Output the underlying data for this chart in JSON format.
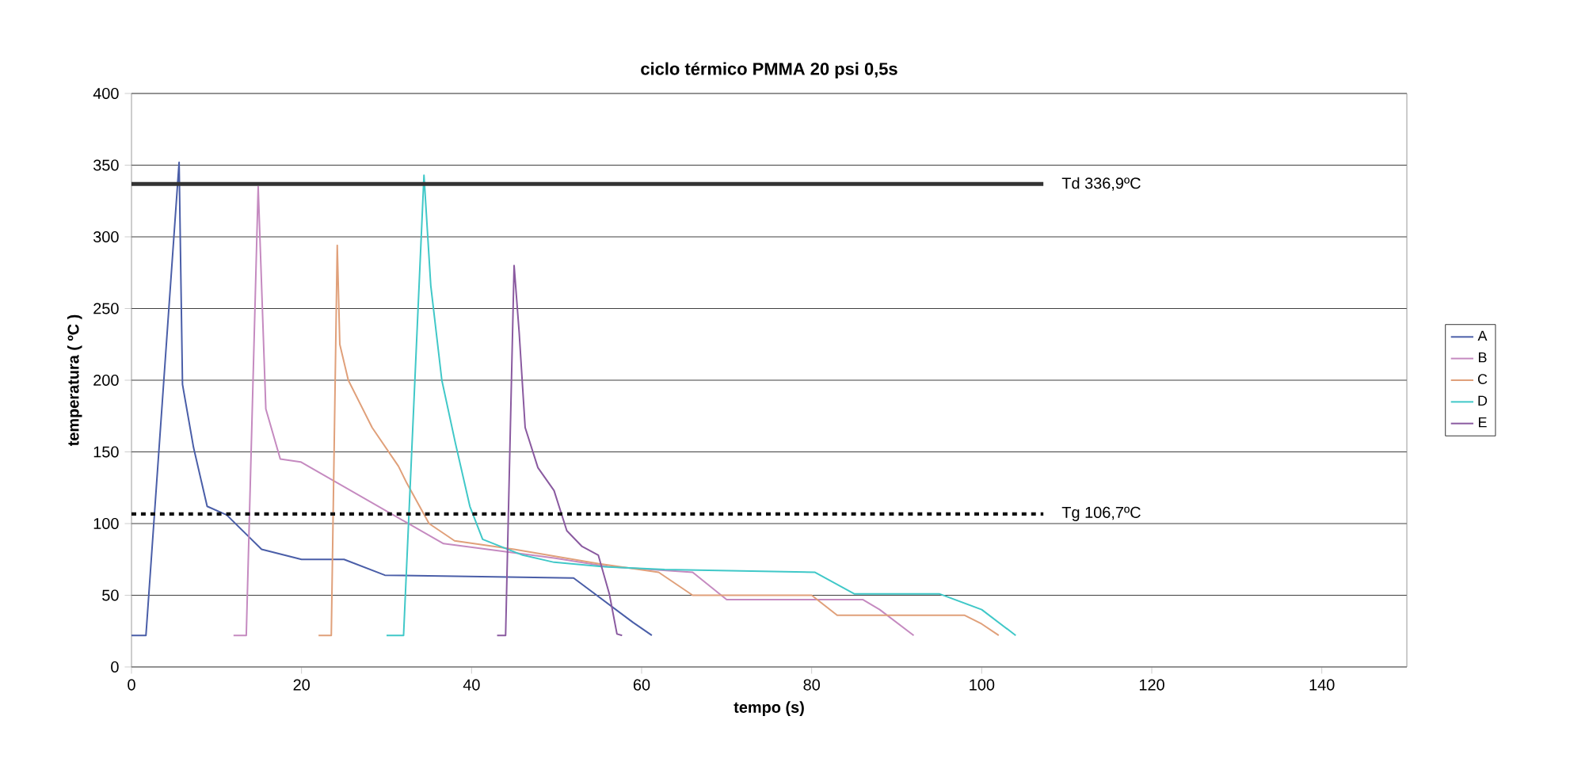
{
  "chart_data": {
    "type": "line",
    "title": "ciclo térmico PMMA 20 psi 0,5s",
    "xlabel": "tempo (s)",
    "ylabel": "temperatura ( ºC )",
    "xlim": [
      0,
      150
    ],
    "xticks": [
      0,
      20,
      40,
      60,
      80,
      100,
      120,
      140
    ],
    "ylim": [
      0,
      400
    ],
    "yticks": [
      0,
      50,
      100,
      150,
      200,
      250,
      300,
      350,
      400
    ],
    "grid": "y",
    "legend": "right",
    "marker": "none",
    "line_style": "solid",
    "series": [
      {
        "name": "A",
        "color": "#4a5ea8",
        "x": [
          0,
          1.7,
          5.6,
          6,
          7.3,
          8.9,
          11.2,
          15.3,
          20,
          25,
          29.8,
          52,
          59,
          61.2
        ],
        "values": [
          22,
          22,
          352,
          197,
          153,
          112,
          106,
          82,
          75,
          75,
          64,
          62,
          31,
          22
        ]
      },
      {
        "name": "B",
        "color": "#c58ac0",
        "x": [
          12,
          13.5,
          14.9,
          15.8,
          17.5,
          19.9,
          36.7,
          49.7,
          56,
          66,
          70,
          86,
          88,
          92
        ],
        "values": [
          22,
          22,
          335,
          180,
          145,
          143,
          86,
          76,
          70,
          66,
          47,
          47,
          40,
          22
        ]
      },
      {
        "name": "C",
        "color": "#e0a07a",
        "x": [
          22,
          23.5,
          24.2,
          24.5,
          25.5,
          28.3,
          31.4,
          32.4,
          35,
          38,
          45,
          55,
          62,
          66,
          80,
          83,
          98,
          100,
          102
        ],
        "values": [
          22,
          22,
          294,
          225,
          200,
          167,
          140,
          128,
          100,
          88,
          82,
          72,
          66,
          50,
          50,
          36,
          36,
          30,
          22
        ]
      },
      {
        "name": "D",
        "color": "#40c8c8",
        "x": [
          30,
          32,
          34.4,
          35.2,
          36.5,
          38.1,
          39.8,
          41.3,
          46,
          49.7,
          55.3,
          62.7,
          80.4,
          85,
          95,
          100,
          104
        ],
        "values": [
          22,
          22,
          343,
          266,
          200,
          156,
          112,
          89,
          78,
          73,
          70,
          68,
          66,
          51,
          51,
          40,
          22
        ]
      },
      {
        "name": "E",
        "color": "#8a5aa0",
        "x": [
          43,
          44,
          45,
          45.6,
          46.3,
          47.8,
          49.7,
          51.2,
          53,
          54.9,
          56.2,
          57.1,
          57.7
        ],
        "values": [
          22,
          22,
          280,
          233,
          167,
          139,
          123,
          95,
          84,
          78,
          51,
          23,
          22
        ]
      }
    ],
    "ref_lines": [
      {
        "axis": "y",
        "value": 336.9,
        "label": "Td 336,9ºC",
        "color": "#333333",
        "line_style": "solid"
      },
      {
        "axis": "y",
        "value": 106.7,
        "label": "Tg 106,7ºC",
        "color": "#111111",
        "line_style": "dotted"
      }
    ]
  }
}
